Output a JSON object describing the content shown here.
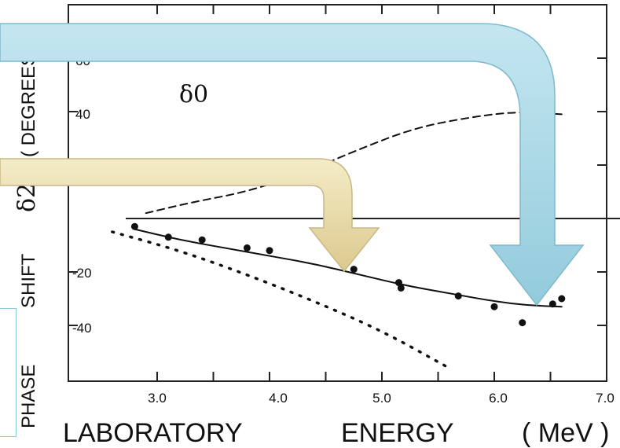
{
  "chart_data": {
    "type": "line",
    "xlabel": {
      "word1": "LABORATORY",
      "word2": "ENERGY",
      "unit": "( MeV )"
    },
    "ylabel": {
      "phase": "PHASE",
      "shift": "SHIFT",
      "unit": "( DEGREES )"
    },
    "xlim": [
      2.2,
      7.0
    ],
    "ylim": [
      -58,
      80
    ],
    "xticks": [
      "3.0",
      "4.0",
      "5.0",
      "6.0",
      "7.0"
    ],
    "yticks": [
      "60",
      "40",
      "-20",
      "-40"
    ],
    "series": [
      {
        "name": "δ0",
        "style": "dashed",
        "x": [
          2.9,
          3.3,
          3.8,
          4.3,
          4.8,
          5.3,
          5.8,
          6.2,
          6.6
        ],
        "y": [
          2,
          6,
          10,
          17,
          26,
          34,
          38,
          40,
          39
        ]
      },
      {
        "name": "δ2",
        "style": "solid",
        "x": [
          2.8,
          3.2,
          3.6,
          4.0,
          4.4,
          4.8,
          5.2,
          5.6,
          6.0,
          6.3,
          6.6
        ],
        "y": [
          -4,
          -8,
          -11,
          -14,
          -17,
          -21,
          -25,
          -28,
          -31,
          -32.5,
          -33
        ]
      },
      {
        "style": "dotted",
        "x": [
          2.6,
          3.2,
          3.8,
          4.4,
          5.0,
          5.6
        ],
        "y": [
          -5,
          -12,
          -21,
          -31,
          -42,
          -56
        ]
      },
      {
        "style": "points",
        "x": [
          2.8,
          3.1,
          3.4,
          3.8,
          4.0,
          4.75,
          5.15,
          5.17,
          5.68,
          6.0,
          6.25,
          6.52,
          6.6
        ],
        "y": [
          -3,
          -7,
          -8,
          -11,
          -12,
          -19,
          -24,
          -26,
          -29,
          -33,
          -39,
          -32,
          -30
        ]
      }
    ],
    "grid": false,
    "legend": "none"
  },
  "overlay": {
    "arrows": [
      {
        "color": "#e8dcb0",
        "points_to": "δ2 curve"
      },
      {
        "color": "#a8d8e6",
        "points_to": "δ2 curve"
      }
    ]
  }
}
